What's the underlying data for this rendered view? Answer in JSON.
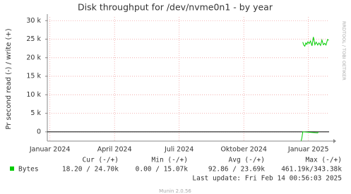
{
  "chart_data": {
    "type": "line",
    "title": "Disk throughput for /dev/nvme0n1 - by year",
    "y_label": "Pr second read (-) / write (+)",
    "watermark": "RRDTOOL / TOBI OETIKER",
    "xlim": [
      2023.99,
      2025.08
    ],
    "xticks": [
      {
        "value": 2024.0,
        "label": "Januar 2024"
      },
      {
        "value": 2024.25,
        "label": "April 2024"
      },
      {
        "value": 2024.5,
        "label": "Juli 2024"
      },
      {
        "value": 2024.75,
        "label": "Oktober 2024"
      },
      {
        "value": 2025.0,
        "label": "Januar 2025"
      }
    ],
    "ylim": [
      -2500,
      31000
    ],
    "yticks": [
      0,
      {
        "value": 5000,
        "label": "5 k"
      },
      {
        "value": 10000,
        "label": "10 k"
      },
      {
        "value": 15000,
        "label": "15 k"
      },
      {
        "value": 20000,
        "label": "20 k"
      },
      {
        "value": 25000,
        "label": "25 k"
      },
      {
        "value": 30000,
        "label": "30 k"
      }
    ],
    "grid": true,
    "series": [
      {
        "name": "Bytes",
        "color": "#00cc00",
        "x": [
          2024.978,
          2024.982,
          2024.986,
          2024.99,
          2024.994,
          2024.998,
          2025.003,
          2025.008,
          2025.014,
          2025.019,
          2025.025,
          2025.03,
          2025.036,
          2025.041,
          2025.047,
          2025.052,
          2025.058,
          2025.063,
          2025.068,
          2025.074,
          2025.079
        ],
        "values": [
          24200,
          23400,
          23100,
          24000,
          23600,
          24300,
          23800,
          24500,
          23200,
          25600,
          23500,
          24200,
          23400,
          24000,
          23300,
          24800,
          23500,
          23900,
          23400,
          24900,
          24700
        ]
      },
      {
        "color": "#00cc00",
        "x": [
          2024.972,
          2024.975,
          2024.978,
          2025.036,
          2025.038
        ],
        "values": [
          -2400,
          -1500,
          0,
          -300,
          0
        ]
      }
    ],
    "legend_table": {
      "headers": [
        "Cur (-/+)",
        "Min (-/+)",
        "Avg (-/+)",
        "Max (-/+)"
      ],
      "rows": [
        [
          "Bytes",
          "18.20 / 24.70k",
          "0.00 / 15.07k",
          "92.86 / 23.69k",
          "461.19k/343.38k"
        ]
      ]
    },
    "last_update": "Last update: Fri Feb 14 00:56:03 2025",
    "footer": "Munin 2.0.56"
  }
}
